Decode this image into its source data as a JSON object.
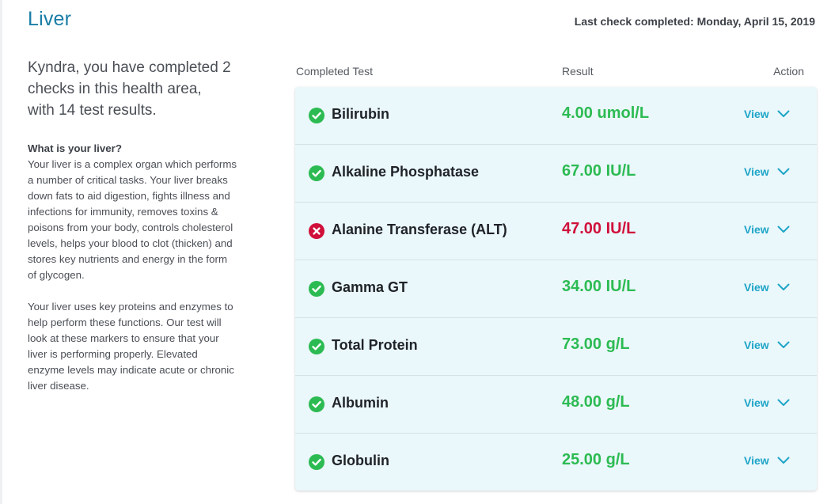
{
  "header": {
    "title": "Liver",
    "last_check": "Last check completed: Monday, April 15, 2019"
  },
  "summary": {
    "lines": [
      "Kyndra, you have completed 2",
      "checks in this health area,",
      "with 14 test results."
    ]
  },
  "info": {
    "heading": "What is your liver?",
    "paragraph1": "Your liver is a complex organ which performs a number of critical tasks. Your liver breaks down fats to aid digestion, fights illness and infections for immunity, removes toxins & poisons from your body, controls cholesterol levels, helps your blood to clot (thicken) and stores key nutrients and energy in the form of glycogen.",
    "paragraph2": "Your liver uses key proteins and enzymes to help perform these functions. Our test will look at these markers to ensure that your liver is performing properly. Elevated enzyme levels may indicate acute or chronic liver disease."
  },
  "table": {
    "columns": [
      "Completed Test",
      "Result",
      "Action"
    ],
    "rows": [
      {
        "test": "Bilirubin",
        "result": "4.00 umol/L",
        "status": "normal",
        "action": "View"
      },
      {
        "test": "Alkaline Phosphatase",
        "result": "67.00 IU/L",
        "status": "normal",
        "action": "View"
      },
      {
        "test": "Alanine Transferase (ALT)",
        "result": "47.00 IU/L",
        "status": "abnormal",
        "action": "View"
      },
      {
        "test": "Gamma GT",
        "result": "34.00 IU/L",
        "status": "normal",
        "action": "View"
      },
      {
        "test": "Total Protein",
        "result": "73.00 g/L",
        "status": "normal",
        "action": "View"
      },
      {
        "test": "Albumin",
        "result": "48.00 g/L",
        "status": "normal",
        "action": "View"
      },
      {
        "test": "Globulin",
        "result": "25.00 g/L",
        "status": "normal",
        "action": "View"
      }
    ]
  },
  "icons": {
    "normal": "check-circle-icon",
    "abnormal": "x-circle-icon",
    "expand": "chevron-down-icon"
  },
  "colors": {
    "title": "#1a7da6",
    "normal": "#2cbb52",
    "abnormal": "#d0103a",
    "action": "#1ea5c7",
    "card_bg": "#eaf7fb"
  }
}
